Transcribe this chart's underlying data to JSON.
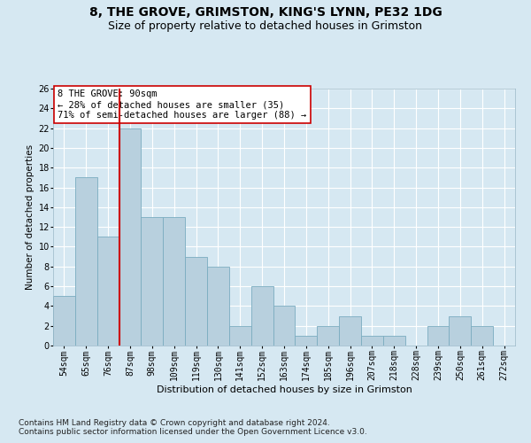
{
  "title": "8, THE GROVE, GRIMSTON, KING'S LYNN, PE32 1DG",
  "subtitle": "Size of property relative to detached houses in Grimston",
  "xlabel_bottom": "Distribution of detached houses by size in Grimston",
  "ylabel": "Number of detached properties",
  "categories": [
    "54sqm",
    "65sqm",
    "76sqm",
    "87sqm",
    "98sqm",
    "109sqm",
    "119sqm",
    "130sqm",
    "141sqm",
    "152sqm",
    "163sqm",
    "174sqm",
    "185sqm",
    "196sqm",
    "207sqm",
    "218sqm",
    "228sqm",
    "239sqm",
    "250sqm",
    "261sqm",
    "272sqm"
  ],
  "values": [
    5,
    17,
    11,
    22,
    13,
    13,
    9,
    8,
    2,
    6,
    4,
    1,
    2,
    3,
    1,
    1,
    0,
    2,
    3,
    2,
    0
  ],
  "bar_color": "#b8d0de",
  "bar_edge_color": "#7aacc0",
  "vline_index": 3,
  "vline_color": "#cc0000",
  "ylim": [
    0,
    26
  ],
  "yticks": [
    0,
    2,
    4,
    6,
    8,
    10,
    12,
    14,
    16,
    18,
    20,
    22,
    24,
    26
  ],
  "annotation_text": "8 THE GROVE: 90sqm\n← 28% of detached houses are smaller (35)\n71% of semi-detached houses are larger (88) →",
  "annotation_box_facecolor": "#ffffff",
  "annotation_box_edgecolor": "#cc0000",
  "footnote_line1": "Contains HM Land Registry data © Crown copyright and database right 2024.",
  "footnote_line2": "Contains public sector information licensed under the Open Government Licence v3.0.",
  "background_color": "#d6e8f2",
  "plot_background_color": "#d6e8f2",
  "grid_color": "#ffffff",
  "title_fontsize": 10,
  "subtitle_fontsize": 9,
  "tick_fontsize": 7,
  "ylabel_fontsize": 7.5,
  "xlabel_fontsize": 8,
  "annotation_fontsize": 7.5,
  "footnote_fontsize": 6.5
}
